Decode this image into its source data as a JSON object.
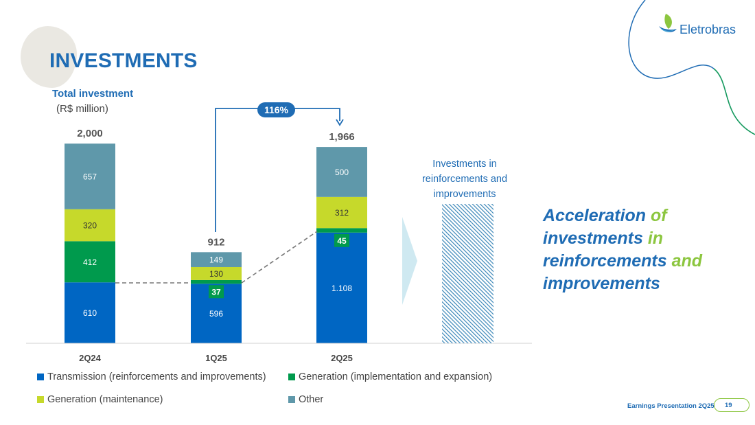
{
  "title": "INVESTMENTS",
  "subtitle": "Total investment",
  "unit": "(R$ million)",
  "logo": {
    "name": "Eletrobras"
  },
  "growth_badge": "116%",
  "side_label": "Investments in reinforcements and improvements",
  "highlight": {
    "parts": [
      {
        "text": "Acceleration",
        "color": "blue"
      },
      {
        "text": " of",
        "color": "green"
      },
      {
        "text": "investments",
        "color": "blue"
      },
      {
        "text": " in",
        "color": "green"
      },
      {
        "text": "reinforcements",
        "color": "blue"
      },
      {
        "text": " and",
        "color": "green"
      },
      {
        "text": "improvements",
        "color": "blue"
      }
    ]
  },
  "footer": {
    "text": "Earnings Presentation 2Q25",
    "page": "19"
  },
  "colors": {
    "transmission": "#0066c3",
    "generation_expansion": "#009a4d",
    "generation_maintenance": "#c6d92b",
    "other": "#5f98aa",
    "brand_blue": "#1f6cb4",
    "brand_green": "#8cc63f"
  },
  "chart_data": {
    "type": "bar",
    "stacked": true,
    "categories": [
      "2Q24",
      "1Q25",
      "2Q25"
    ],
    "series": [
      {
        "name": "Transmission (reinforcements and improvements)",
        "key": "transmission",
        "values": [
          610,
          596,
          1108
        ],
        "labels": [
          "610",
          "596",
          "1.108"
        ]
      },
      {
        "name": "Generation (implementation and expansion)",
        "key": "generation_expansion",
        "values": [
          412,
          37,
          45
        ],
        "labels": [
          "412",
          "37",
          "45"
        ]
      },
      {
        "name": "Generation (maintenance)",
        "key": "generation_maintenance",
        "values": [
          320,
          130,
          312
        ],
        "labels": [
          "320",
          "130",
          "312"
        ]
      },
      {
        "name": "Other",
        "key": "other",
        "values": [
          657,
          149,
          500
        ],
        "labels": [
          "657",
          "149",
          "500"
        ]
      }
    ],
    "totals": [
      "2,000",
      "912",
      "1,966"
    ],
    "title": "Total investment",
    "ylabel": "R$ million",
    "ylim": [
      0,
      2000
    ],
    "legend_position": "bottom"
  }
}
